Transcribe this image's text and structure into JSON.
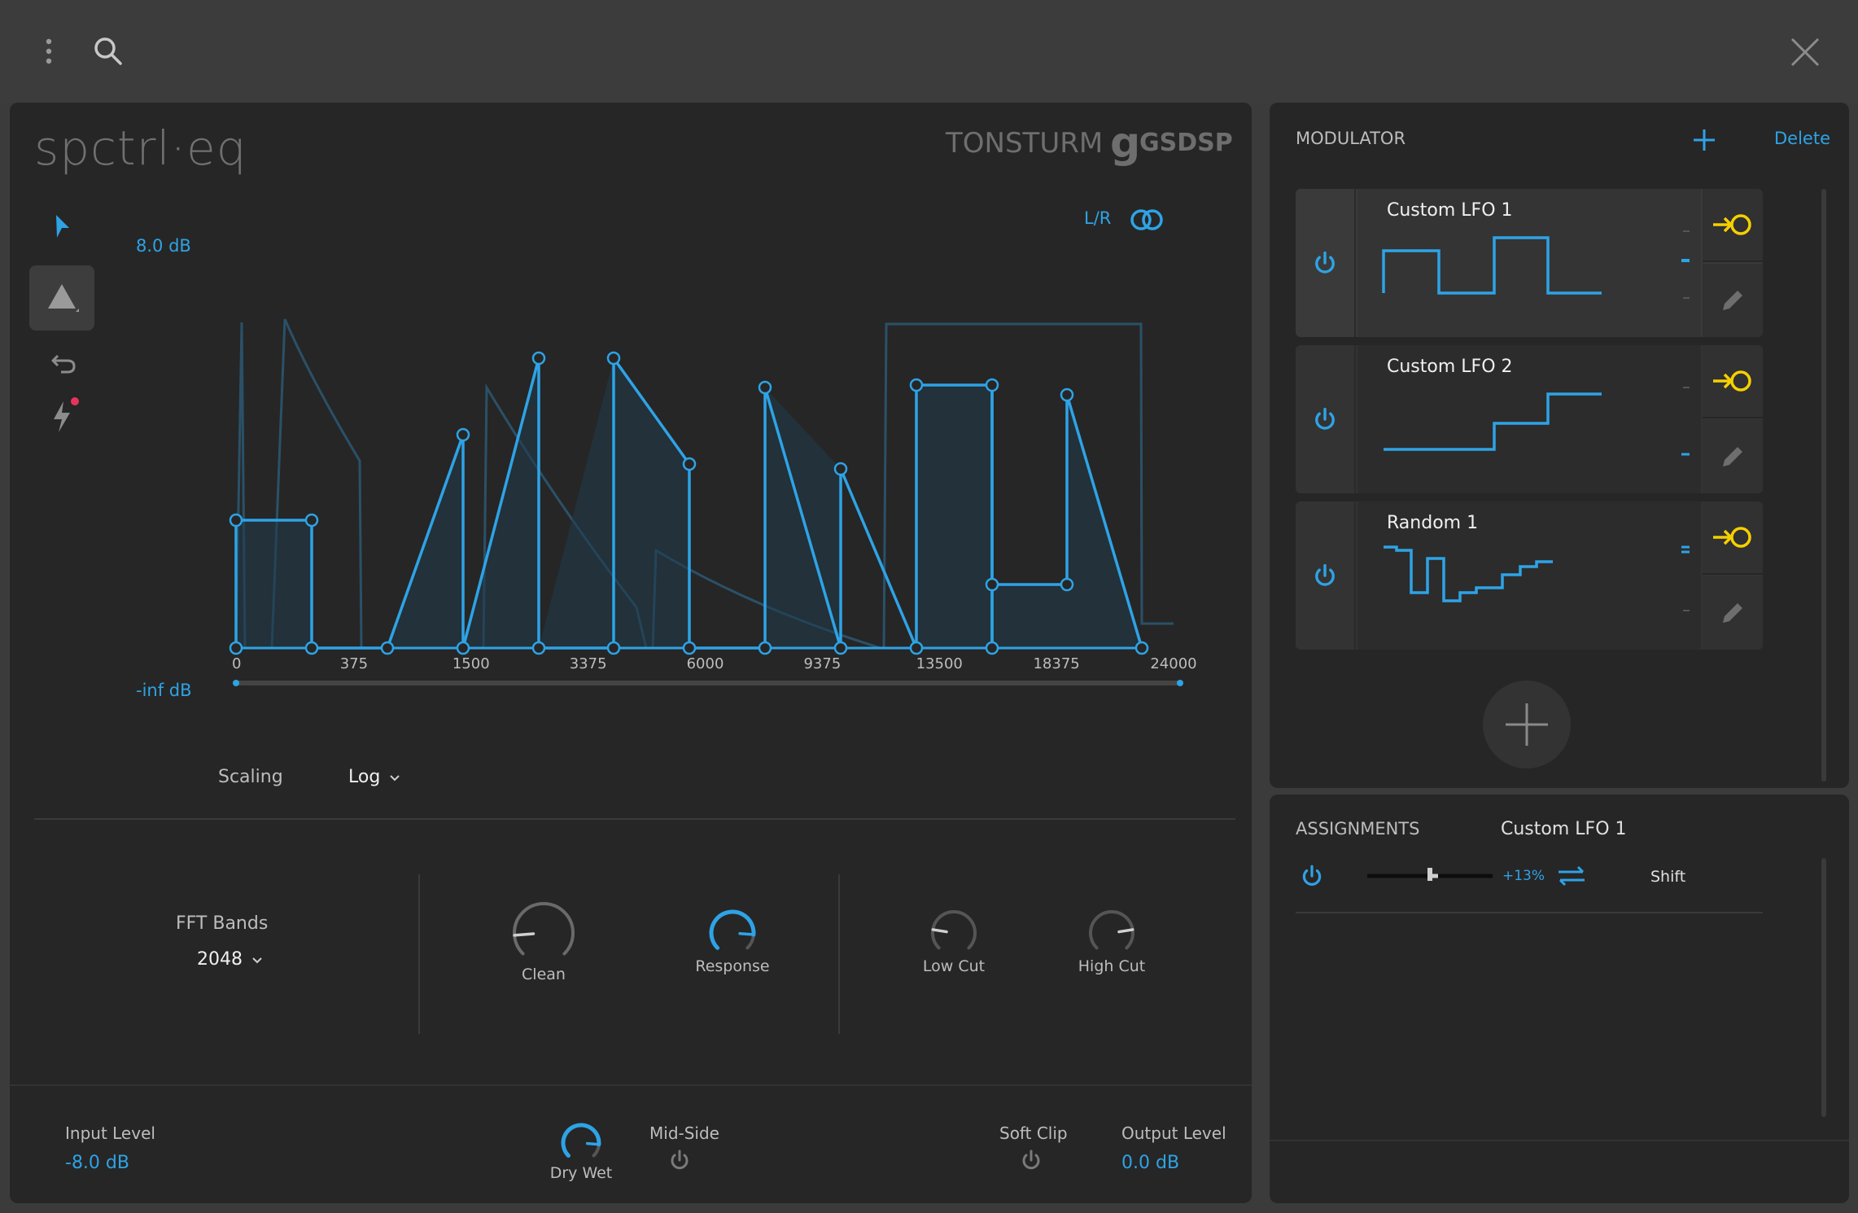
{
  "topbar": {
    "menu_icon": "vertical-dots-icon",
    "search_icon": "search-icon",
    "close_icon": "close-icon"
  },
  "plugin": {
    "name": "spctrl·eq",
    "brand1": "TONSTURM",
    "brand2_mark": "g",
    "brand2": "GSDSP",
    "lr_label": "L/R",
    "db_top": "8.0 dB",
    "db_bottom": "-inf dB",
    "x_ticks": [
      "0",
      "375",
      "1500",
      "3375",
      "6000",
      "9375",
      "13500",
      "18375",
      "24000"
    ],
    "scaling_label": "Scaling",
    "scaling_value": "Log",
    "fft_label": "FFT Bands",
    "fft_value": "2048",
    "knobs": [
      {
        "label": "Clean",
        "value": 0.15
      },
      {
        "label": "Response",
        "value": 0.85
      },
      {
        "label": "Low Cut",
        "value": 0.2
      },
      {
        "label": "High Cut",
        "value": 0.8
      }
    ],
    "footer": {
      "input_label": "Input Level",
      "input_value": "-8.0 dB",
      "drywet_label": "Dry Wet",
      "drywet_value": 0.85,
      "midside_label": "Mid-Side",
      "softclip_label": "Soft Clip",
      "output_label": "Output Level",
      "output_value": "0.0 dB"
    },
    "colors": {
      "accent": "#2ea3e6",
      "yellow": "#f5d000",
      "panel": "#262626"
    }
  },
  "modulator": {
    "title": "MODULATOR",
    "add_icon": "plus-icon",
    "delete_label": "Delete",
    "items": [
      {
        "name": "Custom LFO 1",
        "selected": true
      },
      {
        "name": "Custom LFO 2",
        "selected": false
      },
      {
        "name": "Random 1",
        "selected": false
      }
    ]
  },
  "assignments": {
    "title": "ASSIGNMENTS",
    "current": "Custom LFO 1",
    "rows": [
      {
        "amount": "+13%",
        "target": "Shift",
        "amount_fraction": 0.13
      }
    ]
  }
}
